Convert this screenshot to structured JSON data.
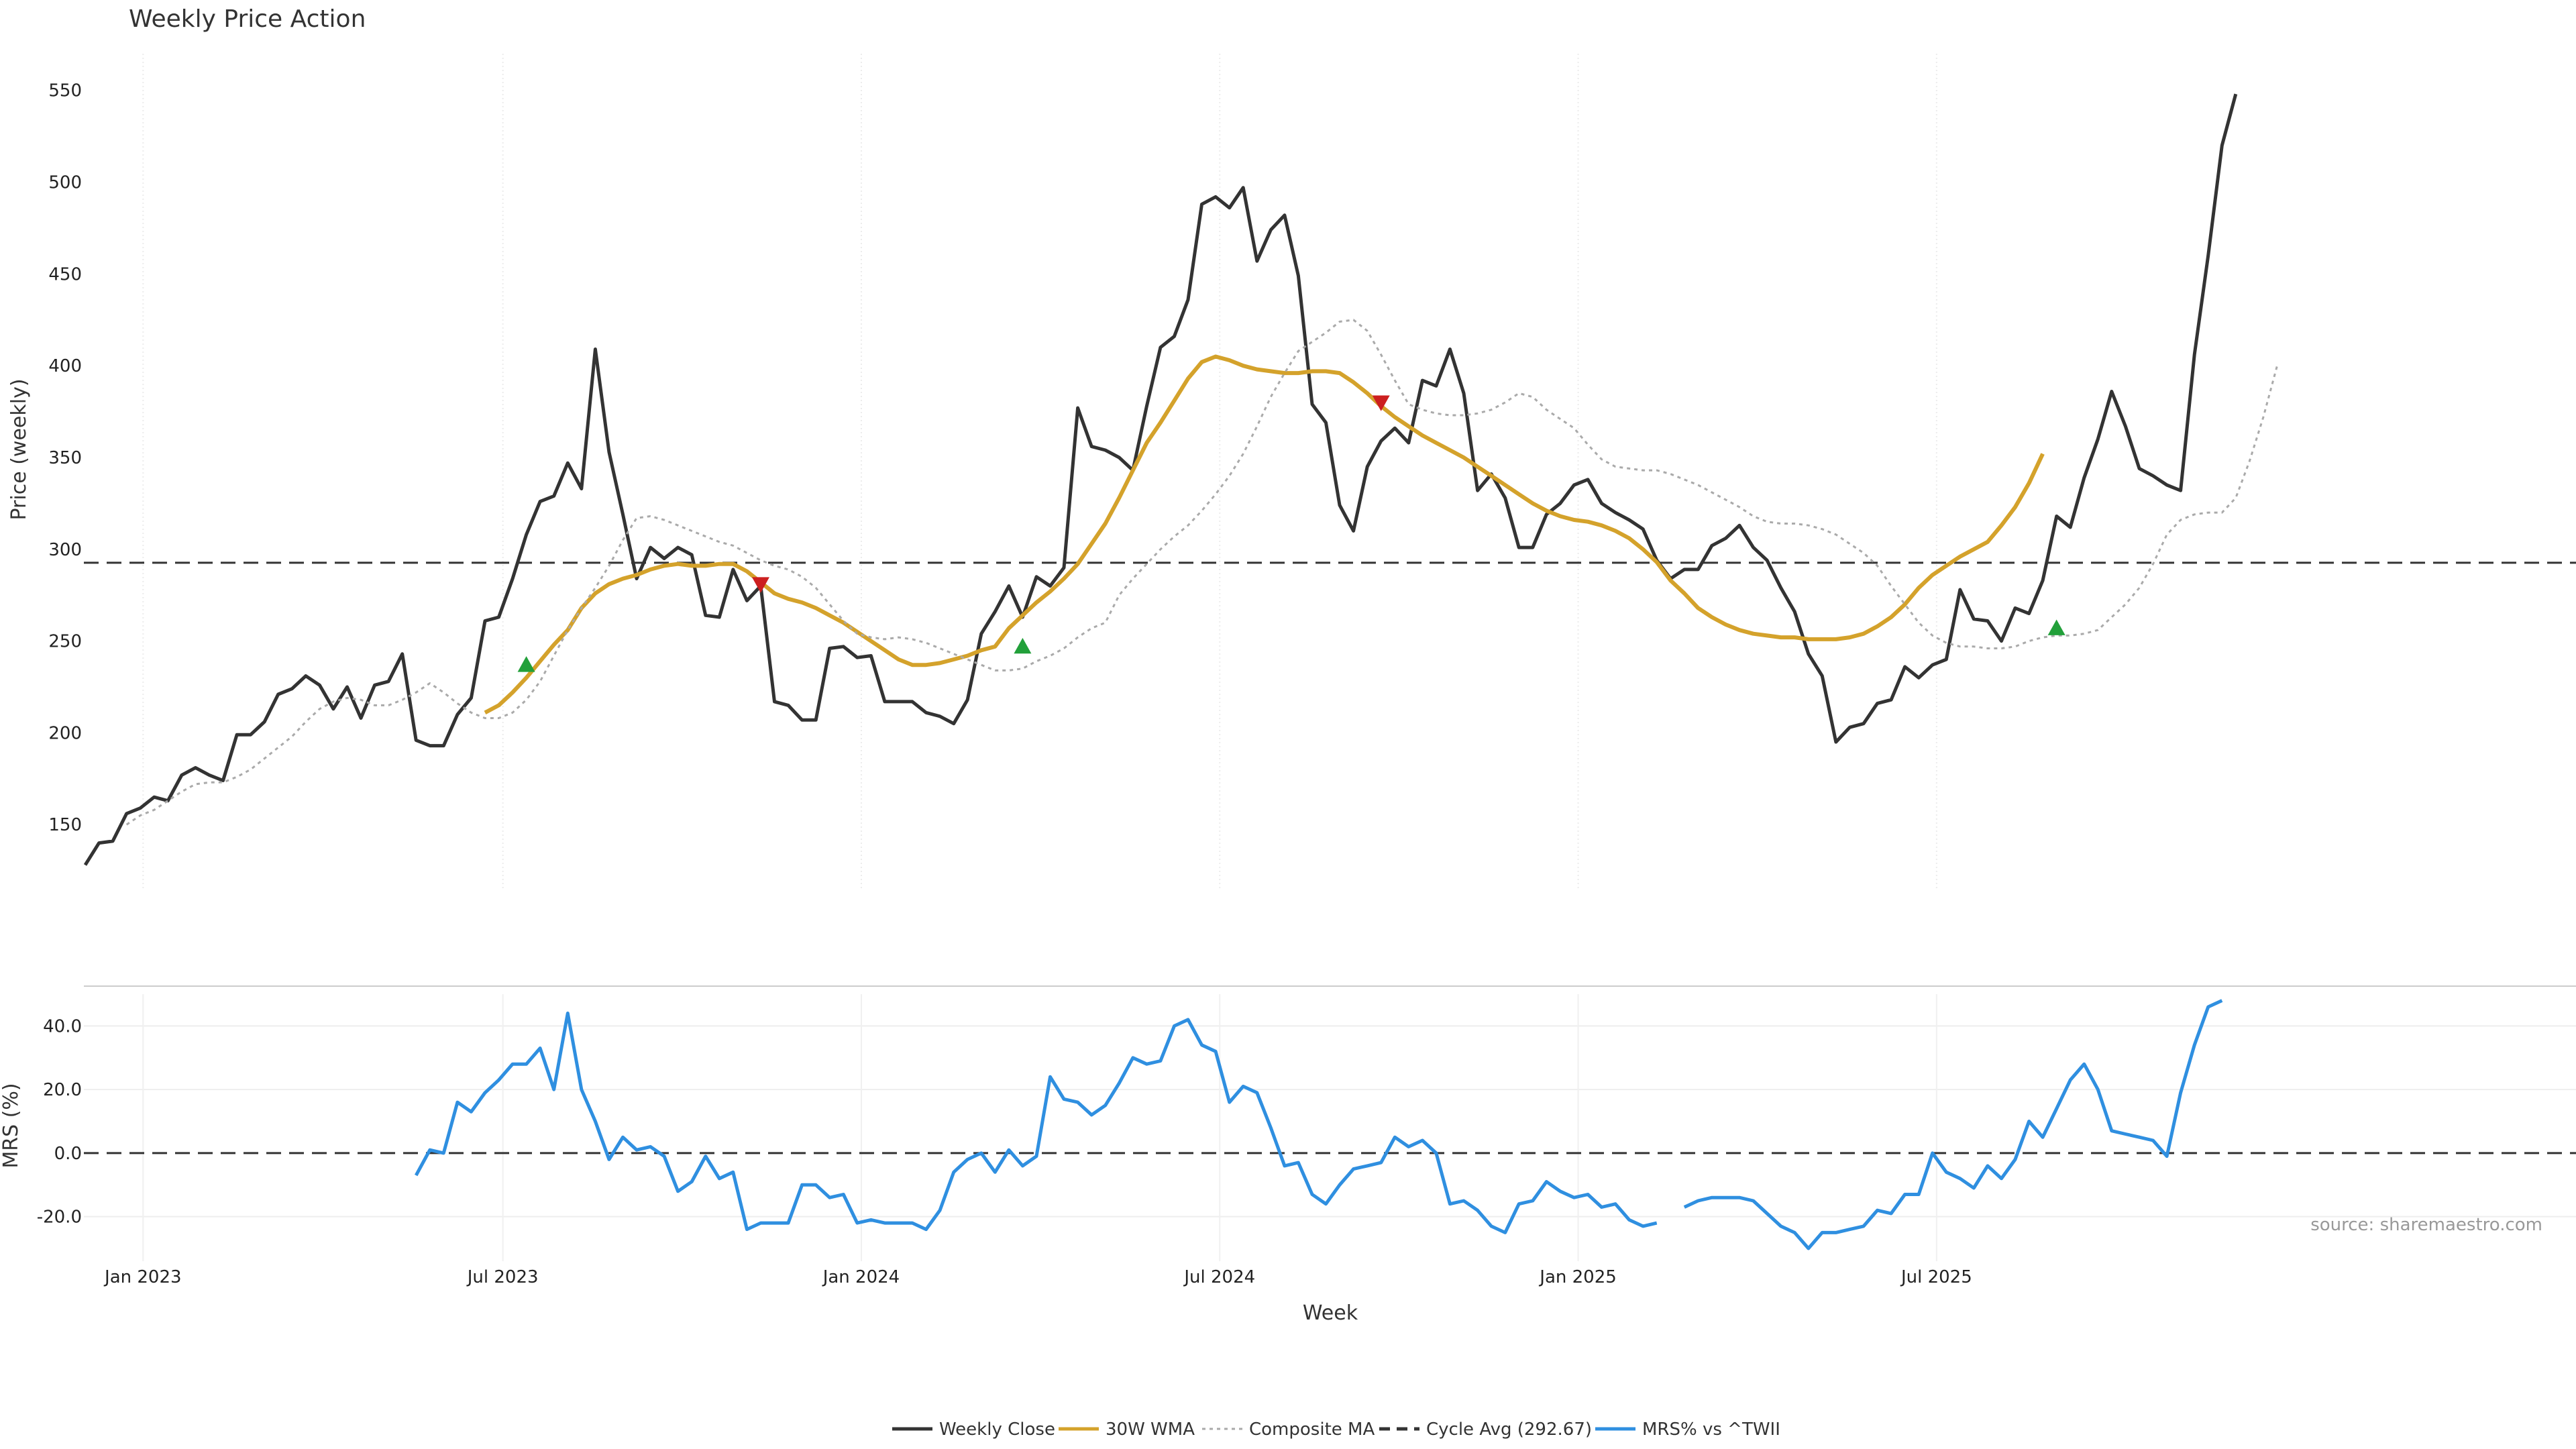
{
  "chart_data": [
    {
      "type": "line",
      "title": "Weekly Price Action",
      "ylabel": "Price (weekly)",
      "ylim": [
        115,
        570
      ],
      "yticks": [
        "150",
        "200",
        "250",
        "300",
        "350",
        "400",
        "450",
        "500",
        "550"
      ],
      "grid": "vertical",
      "cycle_avg": 292.67,
      "series": [
        {
          "name": "Weekly Close",
          "color": "#333333",
          "style": "solid",
          "start": 0,
          "values": [
            128,
            140,
            141,
            156,
            159,
            165,
            163,
            177,
            181,
            177,
            174,
            199,
            199,
            206,
            221,
            224,
            231,
            226,
            213,
            225,
            208,
            226,
            228,
            243,
            196,
            193,
            193,
            210,
            219,
            261,
            263,
            284,
            308,
            326,
            329,
            347,
            333,
            409,
            353,
            319,
            284,
            301,
            295,
            301,
            297,
            264,
            263,
            289,
            272,
            280,
            217,
            215,
            207,
            207,
            246,
            247,
            241,
            242,
            217,
            217,
            217,
            211,
            209,
            205,
            218,
            254,
            266,
            280,
            263,
            285,
            280,
            290,
            377,
            356,
            354,
            350,
            343,
            378,
            410,
            416,
            436,
            488,
            492,
            486,
            497,
            457,
            474,
            482,
            449,
            379,
            369,
            324,
            310,
            345,
            359,
            366,
            358,
            392,
            389,
            409,
            385,
            332,
            341,
            328,
            301,
            301,
            319,
            325,
            335,
            338,
            325,
            320,
            316,
            311,
            294,
            284,
            289,
            289,
            302,
            306,
            313,
            301,
            294,
            279,
            266,
            243,
            231,
            195,
            203,
            205,
            216,
            218,
            236,
            230,
            237,
            240,
            278,
            262,
            261,
            250,
            268,
            265,
            283,
            318,
            312,
            339,
            360,
            386,
            367,
            344,
            340,
            335,
            332,
            406,
            460,
            520,
            548
          ]
        },
        {
          "name": "30W WMA",
          "color": "#d4a22b",
          "style": "solid",
          "start": 29,
          "values": [
            211,
            215,
            222,
            230,
            239,
            248,
            256,
            268,
            276,
            281,
            284,
            286,
            289,
            291,
            292,
            291,
            291,
            292,
            292,
            288,
            282,
            276,
            273,
            271,
            268,
            264,
            260,
            255,
            250,
            245,
            240,
            237,
            237,
            238,
            240,
            242,
            245,
            247,
            257,
            264,
            271,
            277,
            284,
            292,
            303,
            314,
            328,
            343,
            358,
            369,
            381,
            393,
            402,
            405,
            403,
            400,
            398,
            397,
            396,
            396,
            397,
            397,
            396,
            391,
            385,
            378,
            372,
            367,
            362,
            358,
            354,
            350,
            345,
            340,
            335,
            330,
            325,
            321,
            318,
            316,
            315,
            313,
            310,
            306,
            300,
            293,
            283,
            276,
            268,
            263,
            259,
            256,
            254,
            253,
            252,
            252,
            251,
            251,
            251,
            252,
            254,
            258,
            263,
            270,
            279,
            286,
            291,
            296,
            300,
            304,
            313,
            323,
            336,
            352
          ]
        },
        {
          "name": "Composite MA",
          "color": "#aaaaaa",
          "style": "dotted",
          "start": 3,
          "values": [
            150,
            155,
            158,
            163,
            168,
            172,
            173,
            173,
            176,
            180,
            186,
            192,
            198,
            206,
            213,
            217,
            219,
            218,
            215,
            215,
            218,
            222,
            227,
            222,
            216,
            211,
            208,
            208,
            211,
            218,
            228,
            242,
            256,
            268,
            279,
            291,
            305,
            317,
            318,
            316,
            313,
            310,
            307,
            304,
            302,
            298,
            294,
            291,
            289,
            285,
            279,
            270,
            261,
            254,
            252,
            251,
            252,
            251,
            249,
            246,
            243,
            240,
            237,
            234,
            234,
            235,
            239,
            242,
            246,
            252,
            257,
            260,
            275,
            284,
            292,
            300,
            307,
            313,
            321,
            330,
            340,
            352,
            367,
            383,
            396,
            408,
            413,
            418,
            424,
            425,
            419,
            406,
            392,
            379,
            376,
            374,
            373,
            373,
            374,
            376,
            380,
            385,
            383,
            376,
            371,
            366,
            357,
            349,
            345,
            344,
            343,
            343,
            341,
            338,
            335,
            331,
            327,
            323,
            318,
            315,
            314,
            314,
            313,
            311,
            308,
            303,
            298,
            291,
            280,
            270,
            260,
            253,
            249,
            247,
            247,
            246,
            246,
            247,
            250,
            252,
            253,
            253,
            254,
            256,
            263,
            270,
            279,
            292,
            308,
            316,
            319,
            320,
            320,
            328,
            348,
            372,
            400
          ]
        }
      ],
      "signals": [
        {
          "type": "buy",
          "color": "#22a03a",
          "index": 32,
          "value": 237
        },
        {
          "type": "sell",
          "color": "#cc1f1f",
          "index": 49,
          "value": 281
        },
        {
          "type": "buy",
          "color": "#22a03a",
          "index": 68,
          "value": 247
        },
        {
          "type": "sell",
          "color": "#cc1f1f",
          "index": 94,
          "value": 380
        },
        {
          "type": "buy",
          "color": "#22a03a",
          "index": 143,
          "value": 257
        }
      ]
    },
    {
      "type": "line",
      "ylabel": "MRS (%)",
      "ylim": [
        -34,
        50
      ],
      "yticks": [
        "40.0",
        "20.0",
        "0.0",
        "-20.0"
      ],
      "xlabel": "Week",
      "xticks": [
        "Jan 2023",
        "Jul 2023",
        "Jan 2024",
        "Jul 2024",
        "Jan 2025",
        "Jul 2025"
      ],
      "series": [
        {
          "name": "MRS% vs ^TWII",
          "color": "#2f8fe0",
          "style": "solid",
          "start": 24,
          "values": [
            -7,
            1,
            0,
            16,
            13,
            19,
            23,
            28,
            28,
            33,
            20,
            44,
            20,
            10,
            -2,
            5,
            1,
            2,
            -1,
            -12,
            -9,
            -1,
            -8,
            -6,
            -24,
            -22,
            -22,
            -22,
            -10,
            -10,
            -14,
            -13,
            -22,
            -21,
            -22,
            -22,
            -22,
            -24,
            -18,
            -6,
            -2,
            0,
            -6,
            1,
            -4,
            -1,
            24,
            17,
            16,
            12,
            15,
            22,
            30,
            28,
            29,
            40,
            42,
            34,
            32,
            16,
            21,
            19,
            8,
            -4,
            -3,
            -13,
            -16,
            -10,
            -5,
            -4,
            -3,
            5,
            2,
            4,
            0,
            -16,
            -15,
            -18,
            -23,
            -25,
            -16,
            -15,
            -9,
            -12,
            -14,
            -13,
            -17,
            -16,
            -21,
            -23,
            -22,
            null,
            -17,
            -15,
            -14,
            -14,
            -14,
            -15,
            -19,
            -23,
            -25,
            -30,
            -25,
            -25,
            -24,
            -23,
            -18,
            -19,
            -13,
            -13,
            0,
            -6,
            -8,
            -11,
            -4,
            -8,
            -2,
            10,
            5,
            14,
            23,
            28,
            20,
            7,
            6,
            5,
            4,
            -1,
            19,
            34,
            46,
            48
          ]
        }
      ]
    }
  ],
  "legend": [
    {
      "label": "Weekly Close",
      "color": "#333333",
      "style": "solid"
    },
    {
      "label": "30W WMA",
      "color": "#d4a22b",
      "style": "solid"
    },
    {
      "label": "Composite MA",
      "color": "#aaaaaa",
      "style": "dotted"
    },
    {
      "label": "Cycle Avg (292.67)",
      "color": "#333333",
      "style": "dashed"
    },
    {
      "label": "MRS% vs ^TWII",
      "color": "#2f8fe0",
      "style": "solid"
    }
  ],
  "source": "source: sharemaestro.com"
}
